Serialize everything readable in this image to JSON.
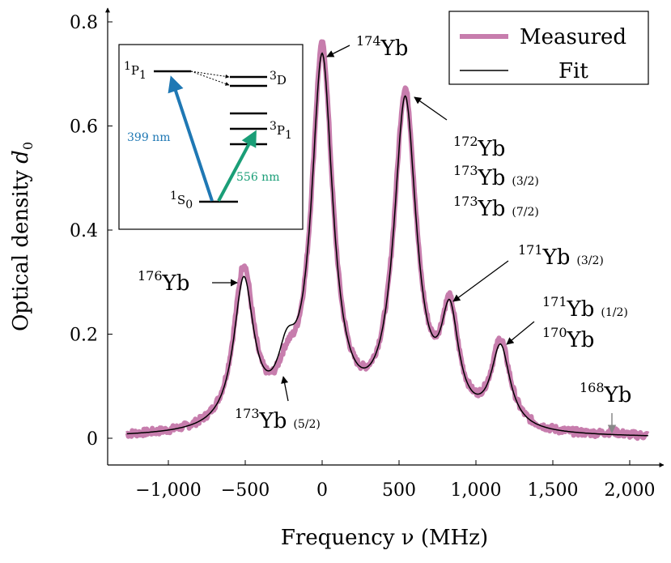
{
  "chart_data": {
    "type": "line",
    "xlabel": "Frequency ν (MHz)",
    "ylabel": "Optical density d0",
    "xlim": [
      -1350,
      2170
    ],
    "ylim": [
      -0.05,
      0.83
    ],
    "x_ticks": [
      -1000,
      -500,
      0,
      500,
      1000,
      1500,
      2000
    ],
    "x_tick_labels": [
      "−1,000",
      "−500",
      "0",
      "500",
      "1,000",
      "1,500",
      "2,000"
    ],
    "y_ticks": [
      0,
      0.2,
      0.4,
      0.6,
      0.8
    ],
    "y_tick_labels": [
      "0",
      "0.2",
      "0.4",
      "0.6",
      "0.8"
    ],
    "grid": false,
    "legend_position": "top-right",
    "series": [
      {
        "name": "Measured",
        "color": "#c77dad",
        "peaks": [
          {
            "x": -510,
            "amp": 0.305,
            "width": 80
          },
          {
            "x": -230,
            "amp": 0.065,
            "width": 75
          },
          {
            "x": 0,
            "amp": 0.725,
            "width": 85
          },
          {
            "x": 540,
            "amp": 0.64,
            "width": 90
          },
          {
            "x": 830,
            "amp": 0.2,
            "width": 70
          },
          {
            "x": 1160,
            "amp": 0.165,
            "width": 75
          },
          {
            "x": 1890,
            "amp": 0.005,
            "width": 60
          }
        ]
      },
      {
        "name": "Fit",
        "color": "#000000",
        "peaks": [
          {
            "x": -510,
            "amp": 0.28,
            "width": 80
          },
          {
            "x": -230,
            "amp": 0.095,
            "width": 75
          },
          {
            "x": 0,
            "amp": 0.705,
            "width": 85
          },
          {
            "x": 540,
            "amp": 0.625,
            "width": 90
          },
          {
            "x": 830,
            "amp": 0.195,
            "width": 70
          },
          {
            "x": 1160,
            "amp": 0.155,
            "width": 75
          }
        ]
      }
    ],
    "annotations": [
      {
        "iso": "174",
        "text": "Yb",
        "suffix": "",
        "peak_x": 0,
        "peak_y": 0.73
      },
      {
        "iso": "176",
        "text": "Yb",
        "suffix": "",
        "peak_x": -510,
        "peak_y": 0.3
      },
      {
        "iso": "172",
        "text": "Yb",
        "suffix": "",
        "peak_x": 540,
        "peak_y": 0.655
      },
      {
        "iso": "173",
        "text": "Yb",
        "suffix": "(3/2)",
        "peak_x": 540,
        "peak_y": 0.655
      },
      {
        "iso": "173",
        "text": "Yb",
        "suffix": "(7/2)",
        "peak_x": 540,
        "peak_y": 0.655
      },
      {
        "iso": "171",
        "text": "Yb",
        "suffix": "(3/2)",
        "peak_x": 830,
        "peak_y": 0.25
      },
      {
        "iso": "171",
        "text": "Yb",
        "suffix": "(1/2)",
        "peak_x": 1160,
        "peak_y": 0.17
      },
      {
        "iso": "170",
        "text": "Yb",
        "suffix": "",
        "peak_x": 1160,
        "peak_y": 0.17
      },
      {
        "iso": "173",
        "text": "Yb",
        "suffix": "(5/2)",
        "peak_x": -230,
        "peak_y": 0.14
      },
      {
        "iso": "168",
        "text": "Yb",
        "suffix": "",
        "peak_x": 1890,
        "peak_y": 0.01,
        "color": "#888888"
      }
    ],
    "inset": {
      "levels": [
        {
          "term": "P",
          "sup": "1",
          "sub": "1"
        },
        {
          "term": "D",
          "sup": "3",
          "sub": ""
        },
        {
          "term": "P",
          "sup": "3",
          "sub": "1"
        },
        {
          "term": "S",
          "sup": "1",
          "sub": "0"
        }
      ],
      "transitions": [
        {
          "label": "399 nm",
          "color": "#1f78b4"
        },
        {
          "label": "556 nm",
          "color": "#1a9e77"
        }
      ]
    }
  }
}
